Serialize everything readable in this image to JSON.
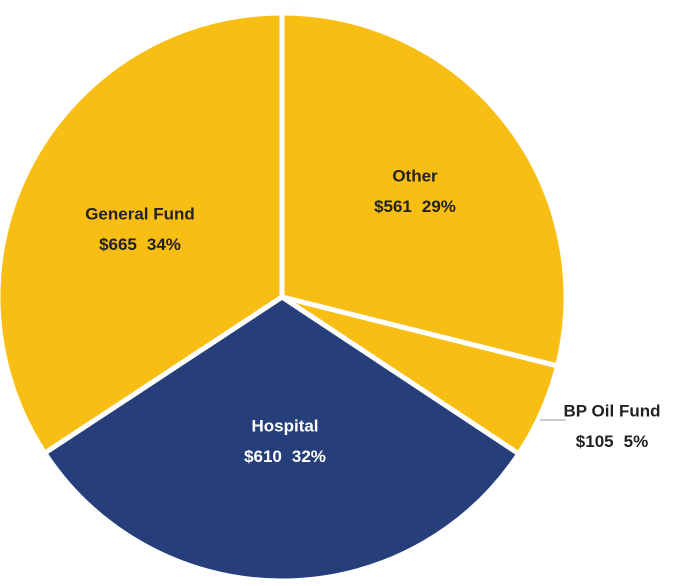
{
  "chart_data": {
    "type": "pie",
    "categories": [
      "Other",
      "BP Oil Fund",
      "Hospital",
      "General Fund"
    ],
    "values": [
      561,
      105,
      610,
      665
    ],
    "value_labels": [
      "$561",
      "$105",
      "$610",
      "$665"
    ],
    "percent_labels": [
      "29%",
      "5%",
      "32%",
      "34%"
    ],
    "colors": [
      "#F9BE14",
      "#F9BE14",
      "#263F7B",
      "#F9BE14"
    ],
    "label_colors": [
      "#222222",
      "#222222",
      "#FFFFFF",
      "#222222"
    ]
  }
}
